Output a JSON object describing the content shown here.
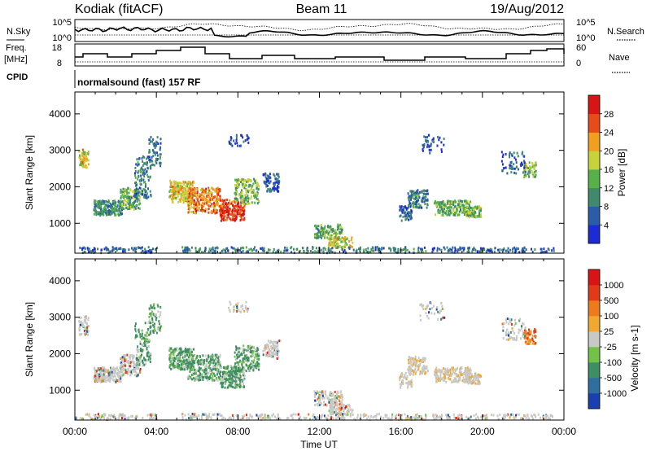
{
  "header": {
    "station": "Kodiak (fitACF)",
    "beam": "Beam 11",
    "date": "19/Aug/2012"
  },
  "top_panels": {
    "nsky_label": "N.Sky",
    "nsky_ticks": [
      "10^5",
      "10^0"
    ],
    "nsearch_label": "N.Search",
    "nsearch_ticks": [
      "10^5",
      "10^0"
    ],
    "freq_label_1": "Freq.",
    "freq_label_2": "[MHz]",
    "freq_ticks": [
      "18",
      "8"
    ],
    "nave_label": "Nave",
    "nave_ticks": [
      "60",
      "0"
    ],
    "cpid_label": "CPID",
    "cpid_text": "normalsound (fast) 157 RF"
  },
  "chart_data": [
    {
      "type": "heatmap",
      "title": "",
      "xlabel": "Time UT",
      "ylabel": "Slant Range [km]",
      "x_ticks": [
        "00:00",
        "04:00",
        "08:00",
        "12:00",
        "16:00",
        "20:00",
        "00:00"
      ],
      "xlim_hours": [
        0,
        24
      ],
      "y_ticks": [
        "1000",
        "2000",
        "3000",
        "4000"
      ],
      "ylim_km": [
        180,
        4600
      ],
      "colorbar_label": "Power [dB]",
      "colorbar_ticks": [
        "4",
        "8",
        "12",
        "16",
        "20",
        "24",
        "28"
      ],
      "colorbar_range": [
        0,
        30
      ],
      "colorbar_colors": [
        "#1d2bd4",
        "#2b5ca8",
        "#3f8a6a",
        "#58b04a",
        "#c8d23a",
        "#f0a01e",
        "#e84b1a",
        "#d81414"
      ]
    },
    {
      "type": "heatmap",
      "title": "",
      "xlabel": "Time UT",
      "ylabel": "Slant Range [km]",
      "x_ticks": [
        "00:00",
        "04:00",
        "08:00",
        "12:00",
        "16:00",
        "20:00",
        "00:00"
      ],
      "xlim_hours": [
        0,
        24
      ],
      "y_ticks": [
        "1000",
        "2000",
        "3000",
        "4000"
      ],
      "ylim_km": [
        180,
        4600
      ],
      "colorbar_label": "Velocity [m s-1]",
      "colorbar_ticks": [
        "1000",
        "500",
        "100",
        "25",
        "-25",
        "-100",
        "-500",
        "-1000"
      ],
      "colorbar_colors": [
        "#1a3fb0",
        "#2f6fa0",
        "#3e8e64",
        "#72c24a",
        "#c8c8c4",
        "#f0a830",
        "#ee7a1e",
        "#e03a18",
        "#d81414"
      ]
    }
  ],
  "x_axis_title": "Time UT"
}
